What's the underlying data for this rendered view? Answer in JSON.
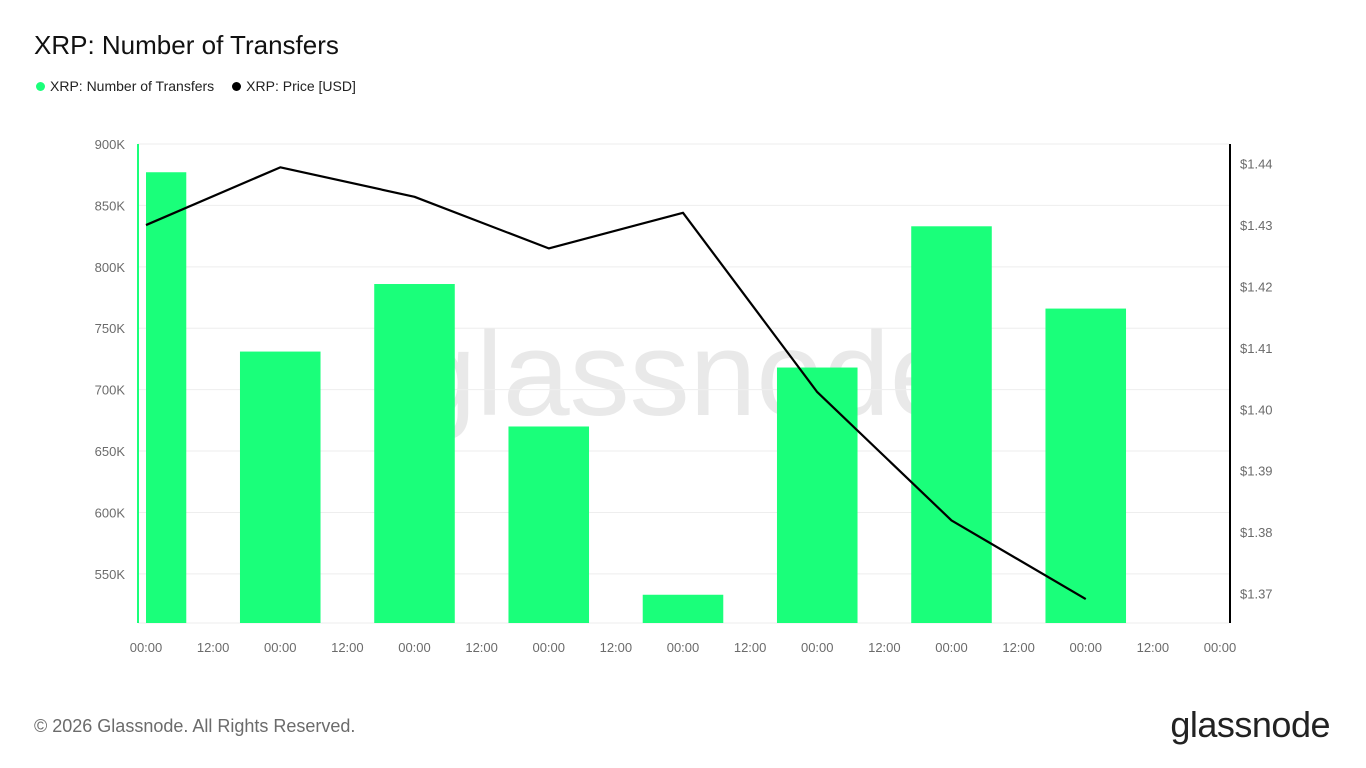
{
  "header": {
    "title": "XRP: Number of Transfers"
  },
  "legend": {
    "items": [
      {
        "label": "XRP: Number of Transfers",
        "color": "#1aff7a"
      },
      {
        "label": "XRP: Price [USD]",
        "color": "#000000"
      }
    ]
  },
  "watermark": "glassnode",
  "footer": {
    "copyright": "© 2026 Glassnode. All Rights Reserved.",
    "brand": "glassnode"
  },
  "colors": {
    "bar": "#1aff7a",
    "line": "#000000",
    "grid": "#eeeeee",
    "axis_text": "#6b6b6b"
  },
  "chart_data": {
    "type": "bar",
    "title": "XRP: Number of Transfers",
    "x_tick_labels": [
      "00:00",
      "12:00",
      "00:00",
      "12:00",
      "00:00",
      "12:00",
      "00:00",
      "12:00",
      "00:00",
      "12:00",
      "00:00",
      "12:00",
      "00:00",
      "12:00",
      "00:00",
      "12:00",
      "00:00"
    ],
    "xlim_hours": [
      0,
      192
    ],
    "y_left": {
      "ticks": [
        "550K",
        "600K",
        "650K",
        "700K",
        "750K",
        "800K",
        "850K",
        "900K"
      ],
      "tick_values": [
        550000,
        600000,
        650000,
        700000,
        750000,
        800000,
        850000,
        900000
      ],
      "range": [
        510000,
        900000
      ]
    },
    "y_right": {
      "ticks": [
        "$1.37",
        "$1.38",
        "$1.39",
        "$1.40",
        "$1.41",
        "$1.42",
        "$1.43",
        "$1.44"
      ],
      "tick_values": [
        1.37,
        1.38,
        1.39,
        1.4,
        1.41,
        1.42,
        1.43,
        1.44
      ],
      "range": [
        1.3652,
        1.4432
      ]
    },
    "series": [
      {
        "name": "XRP: Number of Transfers",
        "type": "bar",
        "axis": "left",
        "x_hours": [
          0,
          24,
          48,
          72,
          96,
          120,
          144,
          168
        ],
        "values": [
          877000,
          731000,
          786000,
          670000,
          533000,
          718000,
          833000,
          766000
        ]
      },
      {
        "name": "XRP: Price [USD]",
        "type": "line",
        "axis": "right",
        "x_hours": [
          0,
          24,
          48,
          72,
          96,
          120,
          144,
          168
        ],
        "values": [
          1.43,
          1.4394,
          1.4346,
          1.4262,
          1.432,
          1.4028,
          1.3819,
          1.3691
        ]
      }
    ],
    "grid": true,
    "legend_position": "top-left"
  }
}
